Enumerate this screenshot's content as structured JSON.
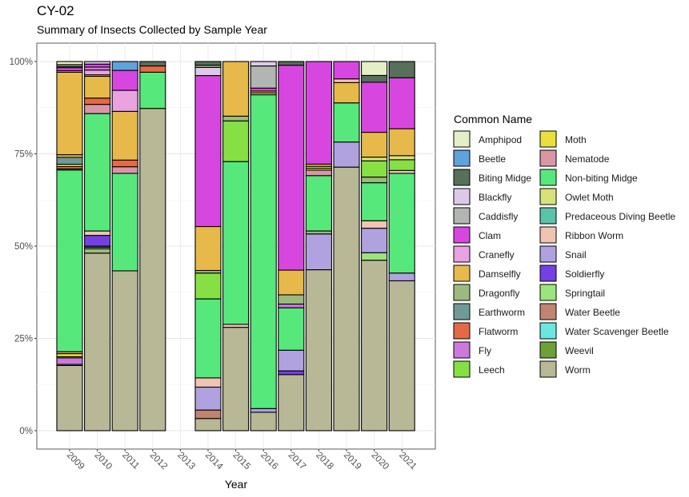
{
  "chart_data": {
    "type": "bar",
    "stacked": true,
    "normalized": true,
    "title": "CY-02",
    "subtitle": "Summary of Insects Collected by Sample Year",
    "xlabel": "Year",
    "ylabel": "",
    "ylim": [
      0,
      1
    ],
    "y_ticks": [
      "0%",
      "25%",
      "50%",
      "75%",
      "100%"
    ],
    "categories": [
      "2009",
      "2010",
      "2011",
      "2012",
      "2013",
      "2014",
      "2015",
      "2016",
      "2017",
      "2018",
      "2019",
      "2020",
      "2021"
    ],
    "legend_title": "Common Name",
    "legend": [
      {
        "name": "Amphipod",
        "color": "#e4efc6"
      },
      {
        "name": "Beetle",
        "color": "#5fa2dc"
      },
      {
        "name": "Biting Midge",
        "color": "#56705a"
      },
      {
        "name": "Blackfly",
        "color": "#dec8ea"
      },
      {
        "name": "Caddisfly",
        "color": "#b2b5b2"
      },
      {
        "name": "Clam",
        "color": "#d846e0"
      },
      {
        "name": "Cranefly",
        "color": "#eaa2e0"
      },
      {
        "name": "Damselfly",
        "color": "#e6b94a"
      },
      {
        "name": "Dragonfly",
        "color": "#9dba7e"
      },
      {
        "name": "Earthworm",
        "color": "#6f9a95"
      },
      {
        "name": "Flatworm",
        "color": "#e46a45"
      },
      {
        "name": "Fly",
        "color": "#cc79dc"
      },
      {
        "name": "Leech",
        "color": "#86e044"
      },
      {
        "name": "Moth",
        "color": "#e8e03c"
      },
      {
        "name": "Nematode",
        "color": "#d996a6"
      },
      {
        "name": "Non-biting Midge",
        "color": "#57e87c"
      },
      {
        "name": "Owlet Moth",
        "color": "#d8e27a"
      },
      {
        "name": "Predaceous Diving Beetle",
        "color": "#5ac4aa"
      },
      {
        "name": "Ribbon Worm",
        "color": "#f0c4b2"
      },
      {
        "name": "Snail",
        "color": "#b0a2de"
      },
      {
        "name": "Soldierfly",
        "color": "#7440e4"
      },
      {
        "name": "Springtail",
        "color": "#9ce47e"
      },
      {
        "name": "Water Beetle",
        "color": "#c08470"
      },
      {
        "name": "Water Scavenger Beetle",
        "color": "#6ae8e0"
      },
      {
        "name": "Weevil",
        "color": "#6ea03a"
      },
      {
        "name": "Worm",
        "color": "#b8b896"
      }
    ],
    "series_by_year": {
      "2009": [
        [
          "Worm",
          0.17
        ],
        [
          "Snail",
          0.003
        ],
        [
          "Fly",
          0.017
        ],
        [
          "Ribbon Worm",
          0.003
        ],
        [
          "Moth",
          0.008
        ],
        [
          "Damselfly",
          0.005
        ],
        [
          "Non-biting Midge",
          0.474
        ],
        [
          "Leech",
          0.003
        ],
        [
          "Flatworm",
          0.006
        ],
        [
          "Owlet Moth",
          0.006
        ],
        [
          "Earthworm",
          0.018
        ],
        [
          "Damselfly",
          0.007
        ],
        [
          "Damselfly",
          0.215
        ],
        [
          "Cranefly",
          0.004
        ],
        [
          "Clam",
          0.008
        ],
        [
          "Owlet Moth",
          0.003
        ],
        [
          "Dragonfly",
          0.005
        ],
        [
          "Amphipod",
          0.008
        ]
      ],
      "2010": [
        [
          "Worm",
          0.481
        ],
        [
          "Dragonfly",
          0.012
        ],
        [
          "Springtail",
          0.004
        ],
        [
          "Predaceous Diving Beetle",
          0.003
        ],
        [
          "Soldierfly",
          0.029
        ],
        [
          "Ribbon Worm",
          0.012
        ],
        [
          "Non-biting Midge",
          0.318
        ],
        [
          "Nematode",
          0.025
        ],
        [
          "Flatworm",
          0.017
        ],
        [
          "Damselfly",
          0.059
        ],
        [
          "Owlet Moth",
          0.004
        ],
        [
          "Cranefly",
          0.013
        ],
        [
          "Fly",
          0.008
        ],
        [
          "Clam",
          0.008
        ],
        [
          "Blackfly",
          0.007
        ]
      ],
      "2011": [
        [
          "Worm",
          0.433
        ],
        [
          "Non-biting Midge",
          0.264
        ],
        [
          "Nematode",
          0.018
        ],
        [
          "Flatworm",
          0.018
        ],
        [
          "Damselfly",
          0.132
        ],
        [
          "Cranefly",
          0.057
        ],
        [
          "Clam",
          0.054
        ],
        [
          "Beetle",
          0.024
        ]
      ],
      "2012": [
        [
          "Worm",
          0.873
        ],
        [
          "Non-biting Midge",
          0.098
        ],
        [
          "Flatworm",
          0.017
        ],
        [
          "Biting Midge",
          0.012
        ]
      ],
      "2013": [],
      "2014": [
        [
          "Worm",
          0.033
        ],
        [
          "Water Beetle",
          0.023
        ],
        [
          "Snail",
          0.062
        ],
        [
          "Ribbon Worm",
          0.025
        ],
        [
          "Non-biting Midge",
          0.214
        ],
        [
          "Leech",
          0.07
        ],
        [
          "Dragonfly",
          0.007
        ],
        [
          "Damselfly",
          0.119
        ],
        [
          "Clam",
          0.409
        ],
        [
          "Blackfly",
          0.022
        ],
        [
          "Dragonfly",
          0.006
        ],
        [
          "Biting Midge",
          0.01
        ]
      ],
      "2015": [
        [
          "Worm",
          0.28
        ],
        [
          "Ribbon Worm",
          0.008
        ],
        [
          "Non-biting Midge",
          0.441
        ],
        [
          "Leech",
          0.11
        ],
        [
          "Dragonfly",
          0.013
        ],
        [
          "Damselfly",
          0.148
        ]
      ],
      "2016": [
        [
          "Worm",
          0.05
        ],
        [
          "Snail",
          0.01
        ],
        [
          "Non-biting Midge",
          0.85
        ],
        [
          "Owlet Moth",
          0.005
        ],
        [
          "Damselfly",
          0.005
        ],
        [
          "Clam",
          0.008
        ],
        [
          "Caddisfly",
          0.06
        ],
        [
          "Blackfly",
          0.012
        ]
      ],
      "2017": [
        [
          "Worm",
          0.152
        ],
        [
          "Soldierfly",
          0.01
        ],
        [
          "Snail",
          0.056
        ],
        [
          "Non-biting Midge",
          0.115
        ],
        [
          "Fly",
          0.01
        ],
        [
          "Dragonfly",
          0.025
        ],
        [
          "Damselfly",
          0.067
        ],
        [
          "Clam",
          0.555
        ],
        [
          "Biting Midge",
          0.01
        ]
      ],
      "2018": [
        [
          "Worm",
          0.436
        ],
        [
          "Snail",
          0.097
        ],
        [
          "Dragonfly",
          0.008
        ],
        [
          "Non-biting Midge",
          0.15
        ],
        [
          "Nematode",
          0.015
        ],
        [
          "Owlet Moth",
          0.005
        ],
        [
          "Moth",
          0.005
        ],
        [
          "Damselfly",
          0.006
        ],
        [
          "Clam",
          0.278
        ]
      ],
      "2019": [
        [
          "Worm",
          0.714
        ],
        [
          "Snail",
          0.068
        ],
        [
          "Non-biting Midge",
          0.106
        ],
        [
          "Damselfly",
          0.055
        ],
        [
          "Ribbon Worm",
          0.01
        ],
        [
          "Clam",
          0.047
        ]
      ],
      "2020": [
        [
          "Worm",
          0.453
        ],
        [
          "Springtail",
          0.02
        ],
        [
          "Snail",
          0.065
        ],
        [
          "Ribbon Worm",
          0.02
        ],
        [
          "Non-biting Midge",
          0.101
        ],
        [
          "Dragonfly",
          0.015
        ],
        [
          "Leech",
          0.043
        ],
        [
          "Owlet Moth",
          0.01
        ],
        [
          "Damselfly",
          0.066
        ],
        [
          "Clam",
          0.133
        ],
        [
          "Biting Midge",
          0.018
        ],
        [
          "Amphipod",
          0.037
        ]
      ],
      "2021": [
        [
          "Worm",
          0.406
        ],
        [
          "Snail",
          0.021
        ],
        [
          "Non-biting Midge",
          0.27
        ],
        [
          "Ribbon Worm",
          0.008
        ],
        [
          "Leech",
          0.029
        ],
        [
          "Owlet Moth",
          0.011
        ],
        [
          "Damselfly",
          0.073
        ],
        [
          "Clam",
          0.138
        ],
        [
          "Biting Midge",
          0.044
        ]
      ]
    }
  }
}
